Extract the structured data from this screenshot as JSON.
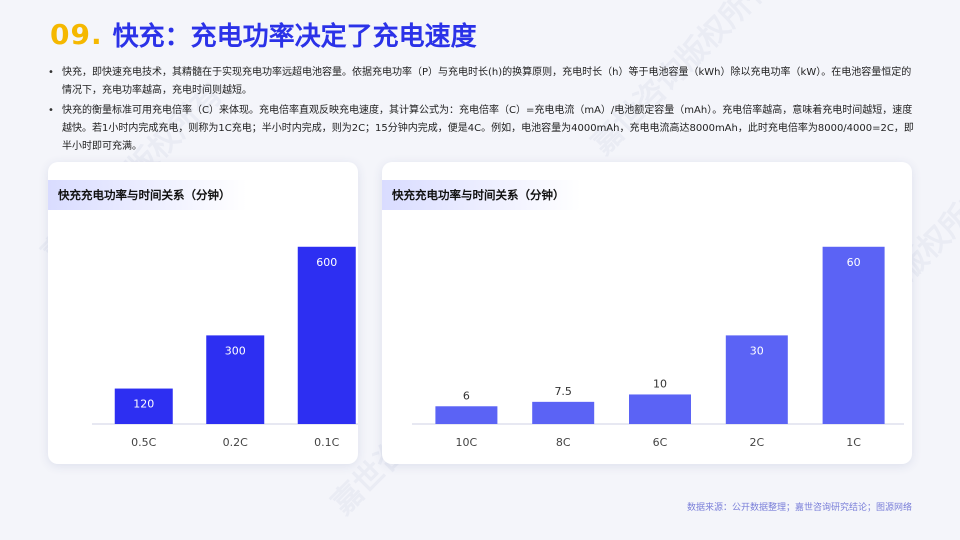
{
  "header": {
    "number": "09.",
    "title": "快充：充电功率决定了充电速度"
  },
  "bullets": [
    "快充，即快速充电技术，其精髓在于实现充电功率远超电池容量。依据充电功率（P）与充电时长(h)的换算原则，充电时长（h）等于电池容量（kWh）除以充电功率（kW）。在电池容量恒定的情况下，充电功率越高，充电时间则越短。",
    "快充的衡量标准可用充电倍率（C）来体现。充电倍率直观反映充电速度，其计算公式为：充电倍率（C）=充电电流（mA）/电池额定容量（mAh）。充电倍率越高，意味着充电时间越短，速度越快。若1小时内完成充电，则称为1C充电；半小时内完成，则为2C；15分钟内完成，便是4C。例如，电池容量为4000mAh，充电电流高达8000mAh，此时充电倍率为8000/4000=2C，即半小时即可充满。"
  ],
  "watermark": "嘉世咨询版权所有",
  "source": "数据来源：公开数据整理；嘉世咨询研究结论；图源网络",
  "colors": {
    "accent": "#f5b800",
    "title": "#2b32e8",
    "bar_dark": "#2d2ff2",
    "bar_light": "#5b63f5"
  },
  "chart_data": [
    {
      "type": "bar",
      "title": "快充充电功率与时间关系（分钟）",
      "categories": [
        "0.5C",
        "0.2C",
        "0.1C"
      ],
      "values": [
        120,
        300,
        600
      ],
      "value_labels": [
        "120",
        "300",
        "600"
      ],
      "color": "#2d2ff2",
      "ylim": [
        0,
        650
      ],
      "grid": false
    },
    {
      "type": "bar",
      "title": "快充充电功率与时间关系（分钟）",
      "categories": [
        "10C",
        "8C",
        "6C",
        "2C",
        "1C"
      ],
      "values": [
        6,
        7.5,
        10,
        30,
        60
      ],
      "value_labels": [
        "6",
        "7.5",
        "10",
        "30",
        "60"
      ],
      "color": "#5b63f5",
      "ylim": [
        0,
        65
      ],
      "grid": false
    }
  ]
}
